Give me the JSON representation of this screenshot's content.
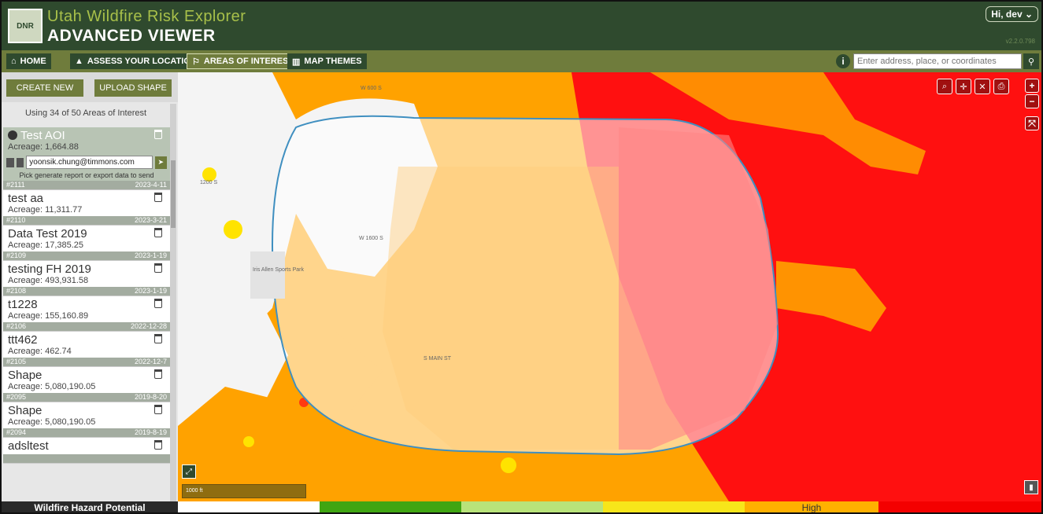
{
  "header": {
    "logo_text": "DNR",
    "title": "Utah Wildfire Risk Explorer",
    "subtitle": "ADVANCED VIEWER",
    "user": "Hi, dev ⌄",
    "version": "v2.2.0.798"
  },
  "nav": {
    "home": "HOME",
    "assess": "ASSESS YOUR LOCATION",
    "aoi": "AREAS OF INTEREST",
    "themes": "MAP THEMES",
    "search_placeholder": "Enter address, place, or coordinates"
  },
  "sidebar": {
    "create_new": "CREATE NEW",
    "upload_shape": "UPLOAD SHAPE",
    "usage": "Using 34 of 50 Areas of Interest",
    "selected": {
      "name": "Test AOI",
      "acreage": "Acreage: 1,664.88",
      "email": "yoonsik.chung@timmons.com",
      "hint": "Pick generate report or export data to send",
      "id": "#2111",
      "date": "2023-4-11"
    },
    "items": [
      {
        "name": "test aa",
        "acreage": "Acreage: 11,311.77",
        "id": "#2110",
        "date": "2023-3-21"
      },
      {
        "name": "Data Test 2019",
        "acreage": "Acreage: 17,385.25",
        "id": "#2109",
        "date": "2023-1-19"
      },
      {
        "name": "testing FH 2019",
        "acreage": "Acreage: 493,931.58",
        "id": "#2108",
        "date": "2023-1-19"
      },
      {
        "name": "t1228",
        "acreage": "Acreage: 155,160.89",
        "id": "#2106",
        "date": "2022-12-28"
      },
      {
        "name": "ttt462",
        "acreage": "Acreage: 462.74",
        "id": "#2105",
        "date": "2022-12-7"
      },
      {
        "name": "Shape",
        "acreage": "Acreage: 5,080,190.05",
        "id": "#2095",
        "date": "2019-8-20"
      },
      {
        "name": "Shape",
        "acreage": "Acreage: 5,080,190.05",
        "id": "#2094",
        "date": "2019-8-19"
      },
      {
        "name": "adsltest",
        "acreage": "",
        "id": "",
        "date": ""
      }
    ]
  },
  "map": {
    "road_labels": [
      "W 600 S",
      "1200 S",
      "W 1600 S",
      "S MAIN ST",
      "Iris Allen Sports Park"
    ],
    "scale_label": "1000 ft"
  },
  "legend": {
    "title": "Wildfire Hazard Potential",
    "high_label": "High",
    "colors": [
      "#ffffff",
      "#3fa512",
      "#b8e37a",
      "#f7e61a",
      "#ffb000",
      "#f40000"
    ]
  }
}
